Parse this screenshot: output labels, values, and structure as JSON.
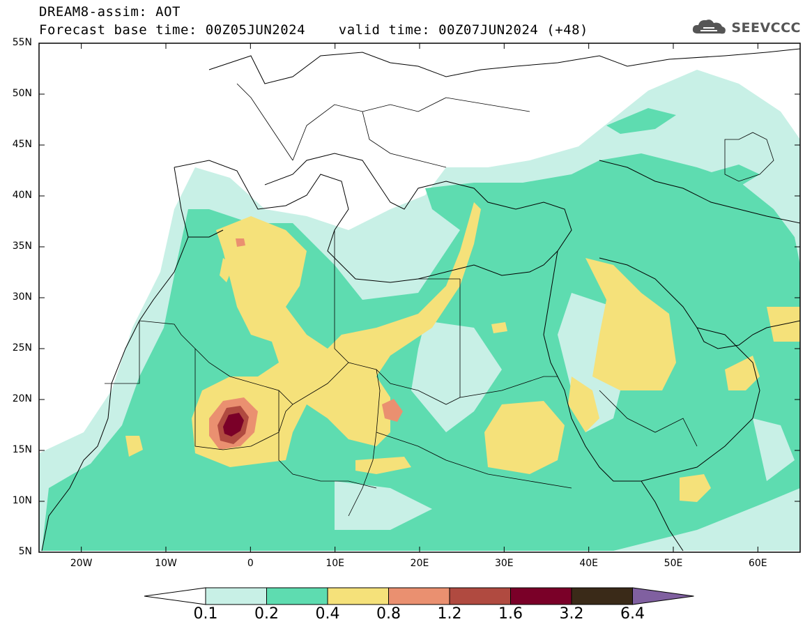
{
  "header": {
    "title": "DREAM8-assim: AOT",
    "subtitle": "Forecast base time: 00Z05JUN2024    valid time: 00Z07JUN2024 (+48)",
    "logo_text": "SEEVCCC",
    "logo_icon": "cloud-icon"
  },
  "map": {
    "lat_labels": [
      "55N",
      "50N",
      "45N",
      "40N",
      "35N",
      "30N",
      "25N",
      "20N",
      "15N",
      "10N",
      "5N"
    ],
    "lon_labels": [
      "20W",
      "10W",
      "0",
      "10E",
      "20E",
      "30E",
      "40E",
      "50E",
      "60E"
    ],
    "extent": {
      "lon_min": -25,
      "lon_max": 65,
      "lat_min": 5,
      "lat_max": 55
    }
  },
  "colorbar": {
    "labels": [
      "0.1",
      "0.2",
      "0.4",
      "0.8",
      "1.2",
      "1.6",
      "3.2",
      "6.4"
    ],
    "colors": [
      "#ffffff",
      "#c8f0e6",
      "#5edcb0",
      "#f5e17a",
      "#ea9070",
      "#b04a40",
      "#7a0028",
      "#3a2a18",
      "#8060a0"
    ]
  },
  "palette": {
    "low": "#c8f0e6",
    "mid": "#5edcb0",
    "high": "#f5e17a",
    "very_high": "#ea9070",
    "extreme": "#b04a40",
    "peak": "#7a0028"
  }
}
